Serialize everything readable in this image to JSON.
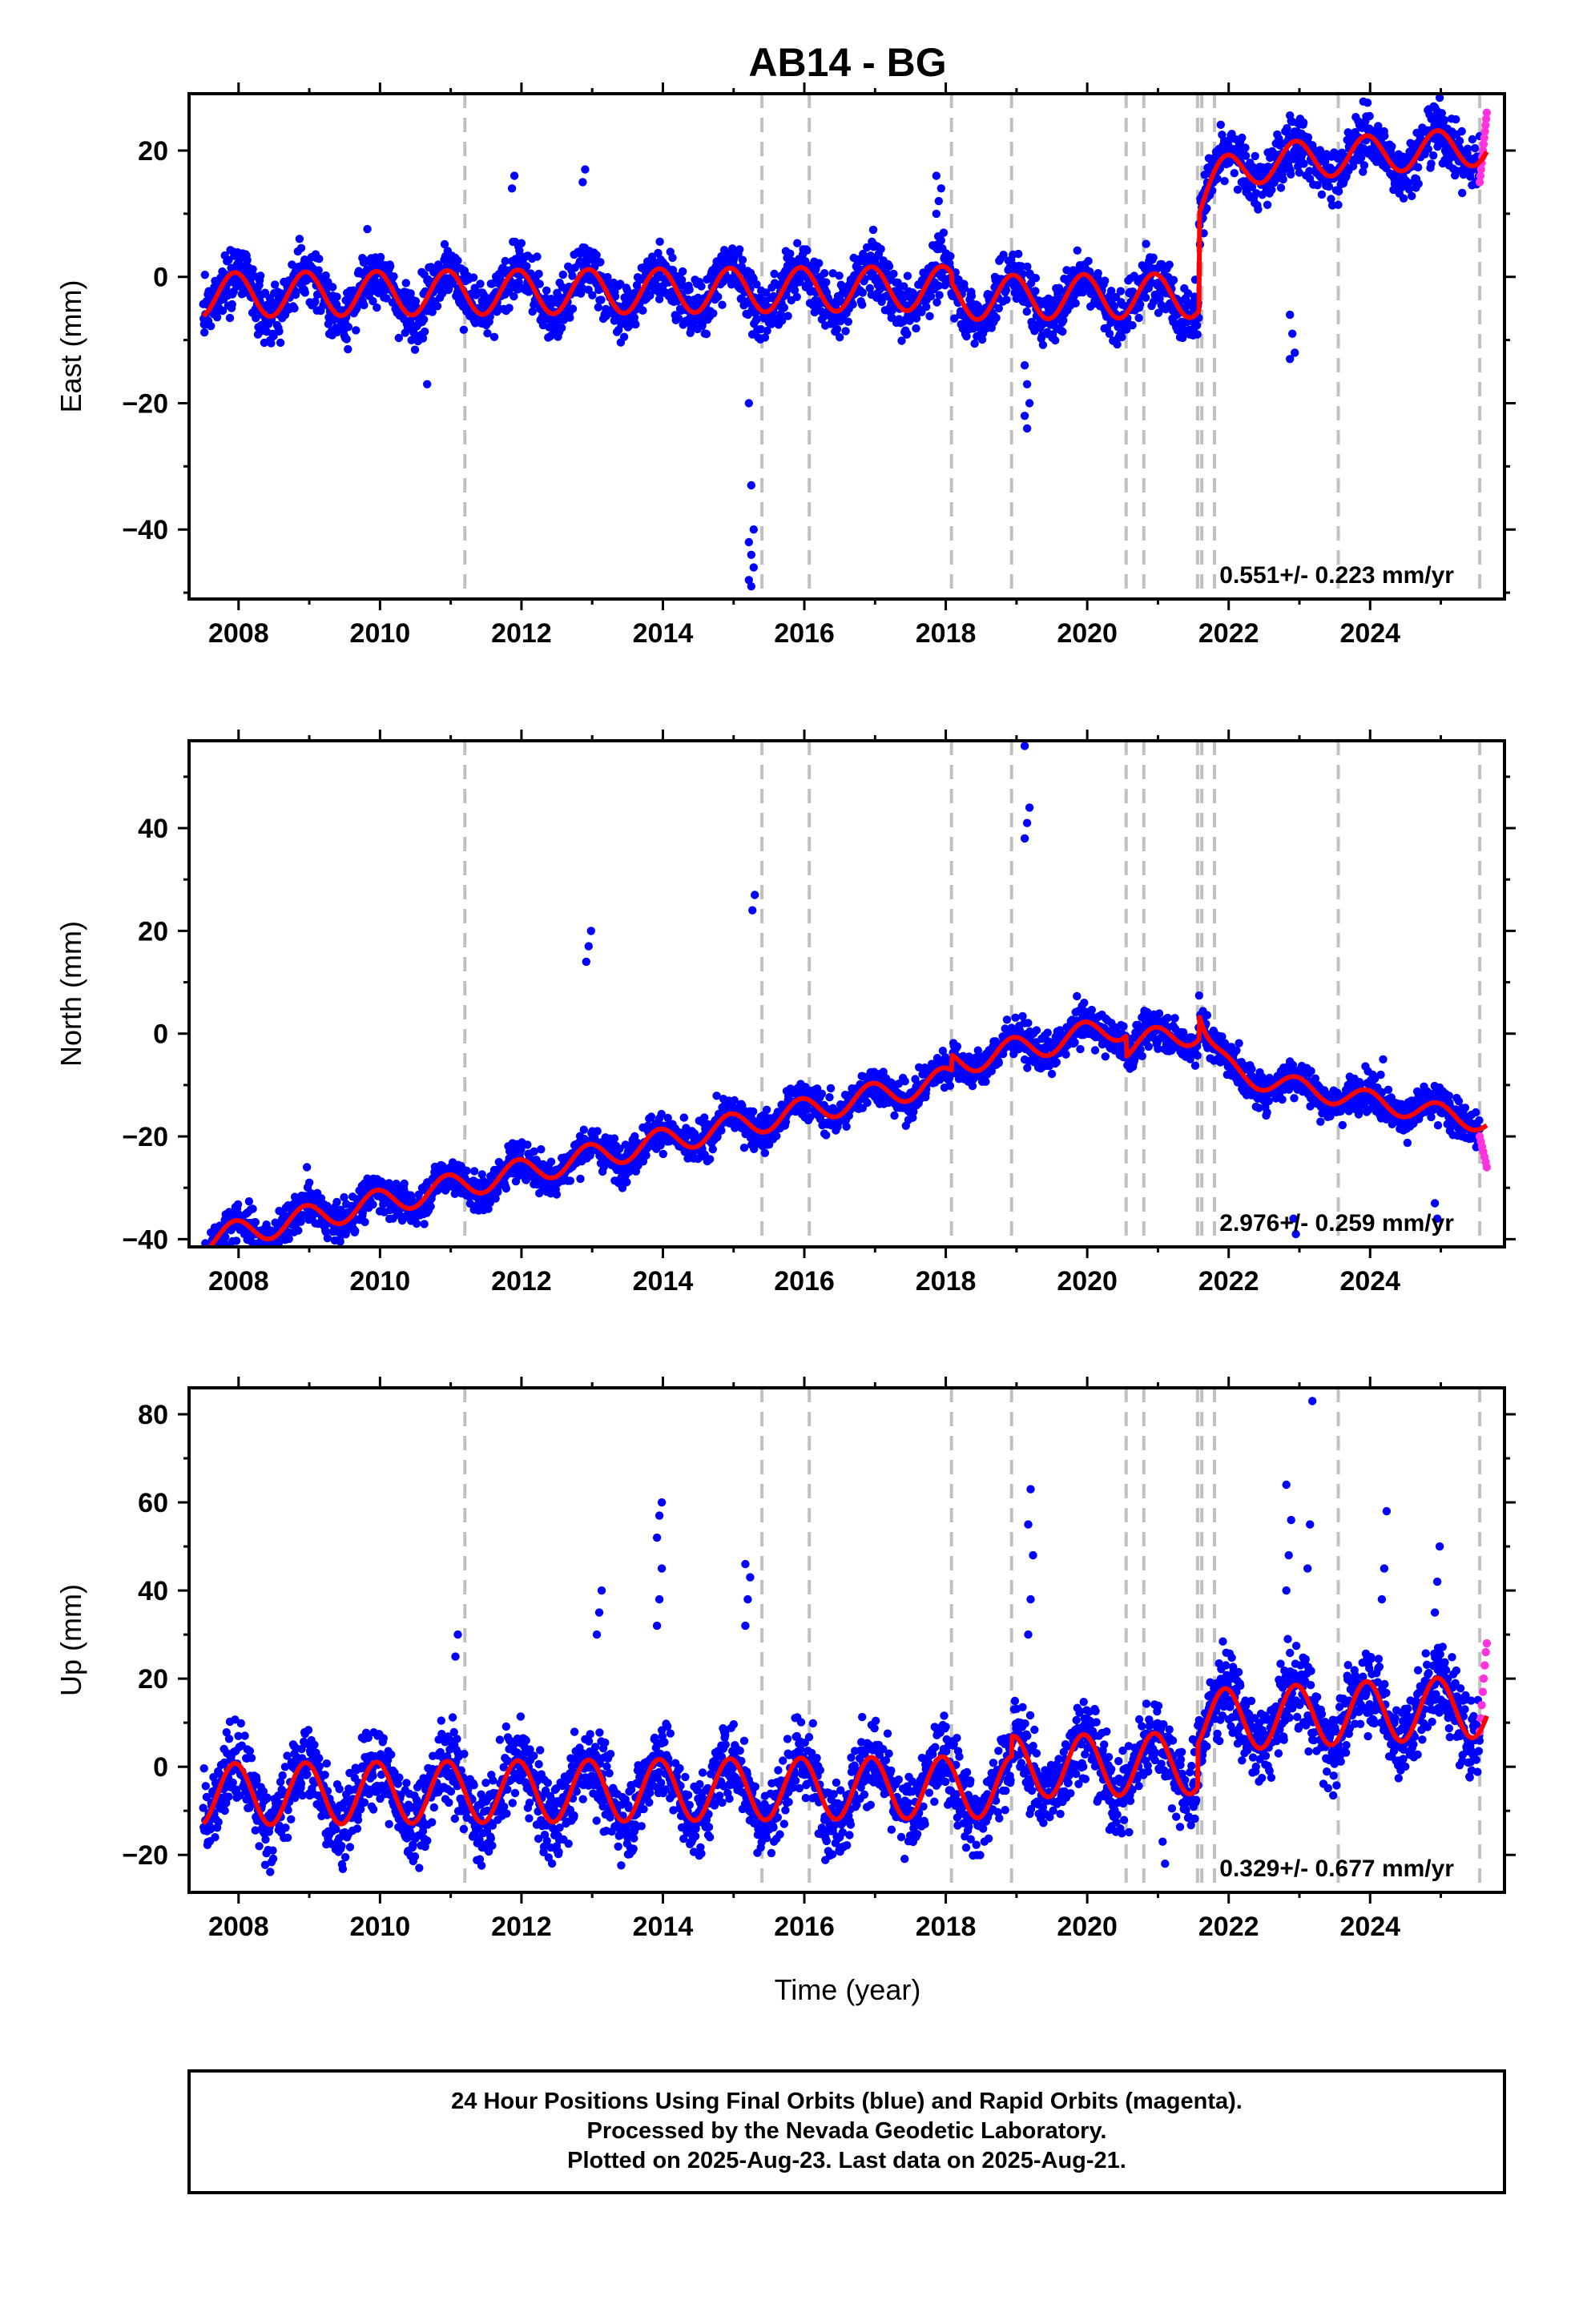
{
  "figure": {
    "title": "AB14 - BG",
    "xlabel": "Time (year)",
    "caption": [
      "24 Hour Positions Using Final Orbits (blue) and Rapid Orbits (magenta).",
      "Processed by the Nevada Geodetic Laboratory.",
      "Plotted on 2025-Aug-23. Last data on 2025-Aug-21."
    ]
  },
  "colors": {
    "final_orbits": "#0000ff",
    "rapid_orbits": "#ff33dd",
    "model_fit": "#ff0000",
    "event_lines": "#c0c0c0",
    "frame": "#000000"
  },
  "chart_data": [
    {
      "type": "scatter",
      "panel": "east",
      "ylabel": "East (mm)",
      "xlim": [
        2007.3,
        2025.9
      ],
      "ylim": [
        -51,
        29
      ],
      "yticks": [
        -40,
        -20,
        0,
        20
      ],
      "xticks": [
        2008,
        2010,
        2012,
        2014,
        2016,
        2018,
        2020,
        2022,
        2024
      ],
      "rate_label": "0.551+/- 0.223 mm/yr",
      "event_lines": [
        2011.2,
        2015.4,
        2016.07,
        2018.08,
        2018.93,
        2020.55,
        2020.8,
        2021.56,
        2021.62,
        2021.8,
        2023.55,
        2025.55
      ],
      "model": {
        "segments": [
          {
            "from": 2007.5,
            "to": 2018.08,
            "offset": -2.0,
            "rate": 0.1,
            "amp": 3.5
          },
          {
            "from": 2018.08,
            "to": 2021.58,
            "offset": -3.5,
            "rate": 0.1,
            "amp": 3.5
          },
          {
            "from": 2021.58,
            "to": 2025.65,
            "offset": 13.0,
            "rate": 0.8,
            "amp": 3.0
          }
        ],
        "post_event": {
          "at": 2021.58,
          "amp": -5.5,
          "tau": 0.3
        }
      },
      "noise_sigma": 2.2,
      "outliers": [
        {
          "x": 2015.25,
          "ys": [
            -20,
            -33,
            -40,
            -42,
            -44,
            -46,
            -48,
            -49
          ]
        },
        {
          "x": 2010.7,
          "ys": [
            -17
          ]
        },
        {
          "x": 2019.15,
          "ys": [
            -14,
            -17,
            -20,
            -22,
            -24
          ]
        },
        {
          "x": 2022.9,
          "ys": [
            -6,
            -9,
            -12,
            -13
          ]
        },
        {
          "x": 2017.9,
          "ys": [
            10,
            12,
            14,
            16
          ]
        },
        {
          "x": 2011.9,
          "ys": [
            14,
            16
          ]
        },
        {
          "x": 2012.9,
          "ys": [
            15,
            17
          ]
        },
        {
          "x": 2024.9,
          "ys": [
            25,
            27
          ]
        }
      ],
      "rapid_points": {
        "from": 2025.55,
        "to": 2025.65,
        "ys": [
          15,
          16,
          17,
          18,
          19,
          20,
          21,
          22,
          23,
          24,
          25,
          26
        ]
      }
    },
    {
      "type": "scatter",
      "panel": "north",
      "ylabel": "North (mm)",
      "xlim": [
        2007.3,
        2025.9
      ],
      "ylim": [
        -41.5,
        57
      ],
      "yticks": [
        -40,
        -20,
        0,
        20,
        40
      ],
      "xticks": [
        2008,
        2010,
        2012,
        2014,
        2016,
        2018,
        2020,
        2022,
        2024
      ],
      "rate_label": "2.976+/- 0.259 mm/yr",
      "event_lines": [
        2011.2,
        2015.4,
        2016.07,
        2018.08,
        2018.93,
        2020.55,
        2020.8,
        2021.56,
        2021.62,
        2021.8,
        2023.55,
        2025.55
      ],
      "model": {
        "segments": [
          {
            "from": 2007.5,
            "to": 2018.08,
            "offset": -15.0,
            "rate": 2.97,
            "amp": 2.5
          },
          {
            "from": 2018.08,
            "to": 2020.55,
            "offset": -12.0,
            "rate": 2.97,
            "amp": 2.5
          },
          {
            "from": 2020.55,
            "to": 2021.58,
            "offset": -16.0,
            "rate": 2.97,
            "amp": 2.5
          },
          {
            "from": 2021.58,
            "to": 2025.65,
            "offset": -23.5,
            "rate": 2.97,
            "amp": 2.0
          }
        ],
        "post_event": {
          "at": 2021.58,
          "amp": 12.0,
          "tau": 0.2
        },
        "post_event_drift": {
          "at": 2021.58,
          "rate": -5.5
        }
      },
      "noise_sigma": 1.8,
      "outliers": [
        {
          "x": 2009.0,
          "ys": [
            -26,
            -29
          ]
        },
        {
          "x": 2012.95,
          "ys": [
            14,
            17,
            20
          ]
        },
        {
          "x": 2015.3,
          "ys": [
            24,
            27
          ]
        },
        {
          "x": 2019.15,
          "ys": [
            38,
            41,
            44,
            56
          ]
        },
        {
          "x": 2022.95,
          "ys": [
            -36,
            -39
          ]
        },
        {
          "x": 2024.15,
          "ys": [
            -12,
            -8,
            -5
          ]
        },
        {
          "x": 2024.95,
          "ys": [
            -33,
            -36
          ]
        }
      ],
      "rapid_points": {
        "from": 2025.55,
        "to": 2025.65,
        "ys": [
          -20,
          -21,
          -22,
          -23,
          -24,
          -25,
          -26
        ]
      }
    },
    {
      "type": "scatter",
      "panel": "up",
      "ylabel": "Up (mm)",
      "xlim": [
        2007.3,
        2025.9
      ],
      "ylim": [
        -28.5,
        86
      ],
      "yticks": [
        -20,
        0,
        20,
        40,
        60,
        80
      ],
      "xticks": [
        2008,
        2010,
        2012,
        2014,
        2016,
        2018,
        2020,
        2022,
        2024
      ],
      "rate_label": "0.329+/- 0.677 mm/yr",
      "event_lines": [
        2011.2,
        2015.4,
        2016.07,
        2018.08,
        2018.93,
        2020.55,
        2020.8,
        2021.56,
        2021.62,
        2021.8,
        2023.55,
        2025.55
      ],
      "model": {
        "segments": [
          {
            "from": 2007.5,
            "to": 2018.93,
            "offset": -5.0,
            "rate": 0.15,
            "amp": 7.0
          },
          {
            "from": 2018.93,
            "to": 2021.56,
            "offset": -1.0,
            "rate": 0.33,
            "amp": 7.0
          },
          {
            "from": 2021.56,
            "to": 2025.65,
            "offset": 6.0,
            "rate": 0.8,
            "amp": 7.0
          }
        ]
      },
      "noise_sigma": 4.5,
      "outliers": [
        {
          "x": 2013.95,
          "ys": [
            32,
            38,
            45,
            52,
            57,
            60
          ]
        },
        {
          "x": 2013.1,
          "ys": [
            30,
            35,
            40
          ]
        },
        {
          "x": 2015.2,
          "ys": [
            32,
            38,
            43,
            46
          ]
        },
        {
          "x": 2019.2,
          "ys": [
            30,
            38,
            48,
            55,
            63
          ]
        },
        {
          "x": 2022.85,
          "ys": [
            40,
            48,
            56,
            64
          ]
        },
        {
          "x": 2023.15,
          "ys": [
            45,
            55,
            83
          ]
        },
        {
          "x": 2024.2,
          "ys": [
            38,
            45,
            58
          ]
        },
        {
          "x": 2024.95,
          "ys": [
            35,
            42,
            50
          ]
        },
        {
          "x": 2011.1,
          "ys": [
            25,
            30
          ]
        },
        {
          "x": 2021.1,
          "ys": [
            -17,
            -22
          ]
        }
      ],
      "rapid_points": {
        "from": 2025.55,
        "to": 2025.65,
        "ys": [
          8,
          11,
          14,
          17,
          20,
          23,
          26,
          28
        ]
      }
    }
  ]
}
